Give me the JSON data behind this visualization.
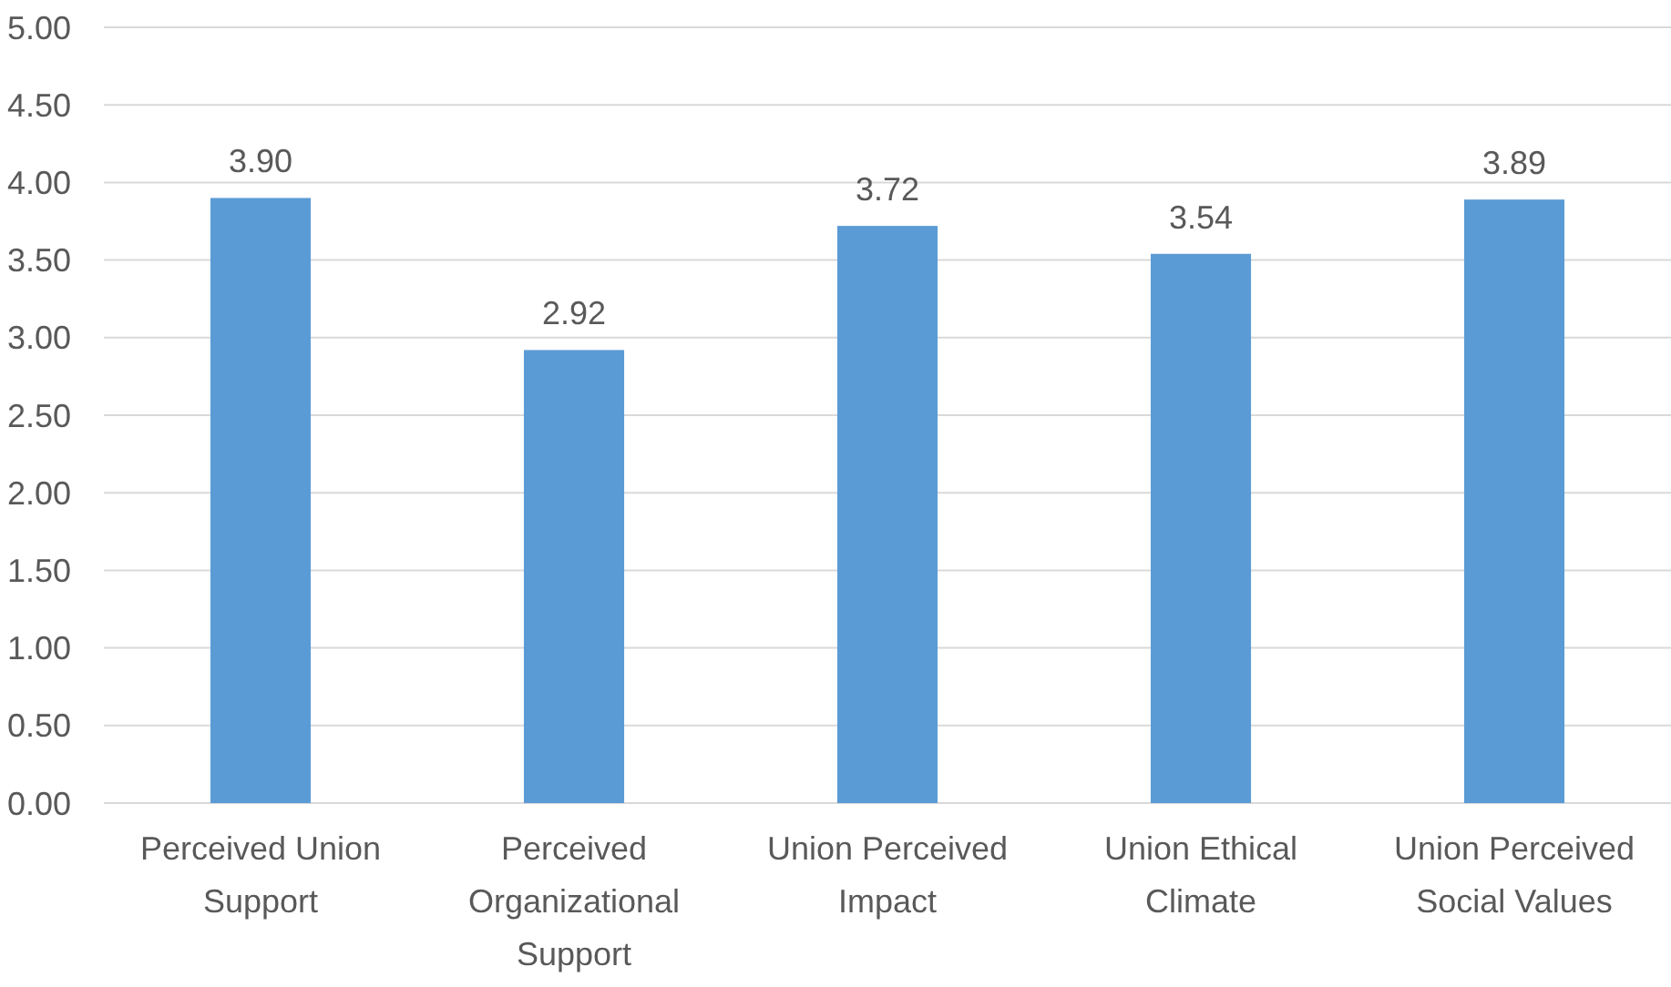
{
  "chart_data": {
    "type": "bar",
    "categories": [
      "Perceived Union Support",
      "Perceived Organizational Support",
      "Union Perceived Impact",
      "Union Ethical Climate",
      "Union Perceived Social Values"
    ],
    "values": [
      3.9,
      2.92,
      3.72,
      3.54,
      3.89
    ],
    "color": "#5b9bd5",
    "ylim": [
      0,
      5
    ],
    "yticks": [
      {
        "value": 0,
        "label": "0.00"
      },
      {
        "value": 0.5,
        "label": "0.50"
      },
      {
        "value": 1,
        "label": "1.00"
      },
      {
        "value": 1.5,
        "label": "1.50"
      },
      {
        "value": 2,
        "label": "2.00"
      },
      {
        "value": 2.5,
        "label": "2.50"
      },
      {
        "value": 3,
        "label": "3.00"
      },
      {
        "value": 3.5,
        "label": "3.50"
      },
      {
        "value": 4,
        "label": "4.00"
      },
      {
        "value": 4.5,
        "label": "4.50"
      },
      {
        "value": 5,
        "label": "5.00"
      }
    ],
    "grid": "y",
    "value_labels": [
      "3.90",
      "2.92",
      "3.72",
      "3.54",
      "3.89"
    ]
  }
}
